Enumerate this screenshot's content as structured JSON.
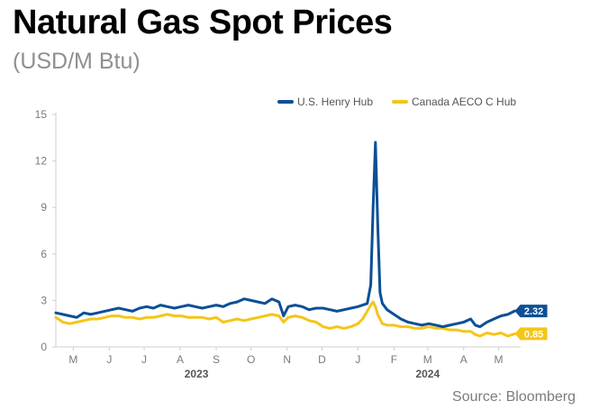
{
  "header": {
    "title": "Natural Gas Spot Prices",
    "subtitle": "(USD/M Btu)"
  },
  "footer": {
    "source": "Source: Bloomberg"
  },
  "colors": {
    "henry_hub": "#0b4f96",
    "aeco": "#f5c518",
    "axis": "#cfcfcf",
    "tick_text": "#7a7a7a"
  },
  "chart_data": {
    "type": "line",
    "title": "Natural Gas Spot Prices",
    "subtitle": "(USD/M Btu)",
    "xlabel": "",
    "ylabel": "",
    "ylim": [
      0,
      15
    ],
    "yticks": [
      0,
      3,
      6,
      9,
      12,
      15
    ],
    "xlim": [
      "2023-04-16",
      "2024-05-20"
    ],
    "grid": false,
    "legend_position": "top-right",
    "x_tick_labels": [
      {
        "label": "M",
        "date": "2023-05-01"
      },
      {
        "label": "J",
        "date": "2023-06-01"
      },
      {
        "label": "J",
        "date": "2023-07-01"
      },
      {
        "label": "A",
        "date": "2023-08-01"
      },
      {
        "label": "S",
        "date": "2023-09-01"
      },
      {
        "label": "O",
        "date": "2023-10-01"
      },
      {
        "label": "N",
        "date": "2023-11-01"
      },
      {
        "label": "D",
        "date": "2023-12-01"
      },
      {
        "label": "J",
        "date": "2024-01-01"
      },
      {
        "label": "F",
        "date": "2024-02-01"
      },
      {
        "label": "M",
        "date": "2024-03-01"
      },
      {
        "label": "A",
        "date": "2024-04-01"
      },
      {
        "label": "M",
        "date": "2024-05-01"
      }
    ],
    "year_labels": [
      {
        "label": "2023",
        "date": "2023-08-15"
      },
      {
        "label": "2024",
        "date": "2024-03-01"
      }
    ],
    "series": [
      {
        "name": "U.S. Henry Hub",
        "color": "#0b4f96",
        "end_label": "2.32",
        "points": [
          [
            "2023-04-16",
            2.2
          ],
          [
            "2023-04-22",
            2.1
          ],
          [
            "2023-04-28",
            2.0
          ],
          [
            "2023-05-04",
            1.9
          ],
          [
            "2023-05-10",
            2.2
          ],
          [
            "2023-05-16",
            2.1
          ],
          [
            "2023-05-22",
            2.2
          ],
          [
            "2023-05-28",
            2.3
          ],
          [
            "2023-06-03",
            2.4
          ],
          [
            "2023-06-09",
            2.5
          ],
          [
            "2023-06-15",
            2.4
          ],
          [
            "2023-06-21",
            2.3
          ],
          [
            "2023-06-27",
            2.5
          ],
          [
            "2023-07-03",
            2.6
          ],
          [
            "2023-07-09",
            2.5
          ],
          [
            "2023-07-15",
            2.7
          ],
          [
            "2023-07-21",
            2.6
          ],
          [
            "2023-07-27",
            2.5
          ],
          [
            "2023-08-02",
            2.6
          ],
          [
            "2023-08-08",
            2.7
          ],
          [
            "2023-08-14",
            2.6
          ],
          [
            "2023-08-20",
            2.5
          ],
          [
            "2023-08-26",
            2.6
          ],
          [
            "2023-09-01",
            2.7
          ],
          [
            "2023-09-07",
            2.6
          ],
          [
            "2023-09-13",
            2.8
          ],
          [
            "2023-09-19",
            2.9
          ],
          [
            "2023-09-25",
            3.1
          ],
          [
            "2023-10-01",
            3.0
          ],
          [
            "2023-10-07",
            2.9
          ],
          [
            "2023-10-13",
            2.8
          ],
          [
            "2023-10-19",
            3.1
          ],
          [
            "2023-10-25",
            2.9
          ],
          [
            "2023-10-29",
            2.0
          ],
          [
            "2023-11-02",
            2.6
          ],
          [
            "2023-11-08",
            2.7
          ],
          [
            "2023-11-14",
            2.6
          ],
          [
            "2023-11-20",
            2.4
          ],
          [
            "2023-11-26",
            2.5
          ],
          [
            "2023-12-02",
            2.5
          ],
          [
            "2023-12-08",
            2.4
          ],
          [
            "2023-12-14",
            2.3
          ],
          [
            "2023-12-20",
            2.4
          ],
          [
            "2023-12-26",
            2.5
          ],
          [
            "2024-01-01",
            2.6
          ],
          [
            "2024-01-05",
            2.7
          ],
          [
            "2024-01-09",
            2.8
          ],
          [
            "2024-01-12",
            4.0
          ],
          [
            "2024-01-14",
            9.0
          ],
          [
            "2024-01-16",
            13.2
          ],
          [
            "2024-01-18",
            8.0
          ],
          [
            "2024-01-20",
            3.5
          ],
          [
            "2024-01-22",
            2.8
          ],
          [
            "2024-01-26",
            2.4
          ],
          [
            "2024-02-01",
            2.1
          ],
          [
            "2024-02-07",
            1.8
          ],
          [
            "2024-02-13",
            1.6
          ],
          [
            "2024-02-19",
            1.5
          ],
          [
            "2024-02-25",
            1.4
          ],
          [
            "2024-03-02",
            1.5
          ],
          [
            "2024-03-08",
            1.4
          ],
          [
            "2024-03-14",
            1.3
          ],
          [
            "2024-03-20",
            1.4
          ],
          [
            "2024-03-26",
            1.5
          ],
          [
            "2024-04-01",
            1.6
          ],
          [
            "2024-04-07",
            1.8
          ],
          [
            "2024-04-11",
            1.4
          ],
          [
            "2024-04-15",
            1.3
          ],
          [
            "2024-04-21",
            1.6
          ],
          [
            "2024-04-27",
            1.8
          ],
          [
            "2024-05-03",
            2.0
          ],
          [
            "2024-05-09",
            2.1
          ],
          [
            "2024-05-15",
            2.32
          ]
        ]
      },
      {
        "name": "Canada AECO C Hub",
        "color": "#f5c518",
        "end_label": "0.85",
        "points": [
          [
            "2023-04-16",
            1.9
          ],
          [
            "2023-04-22",
            1.6
          ],
          [
            "2023-04-28",
            1.5
          ],
          [
            "2023-05-04",
            1.6
          ],
          [
            "2023-05-10",
            1.7
          ],
          [
            "2023-05-16",
            1.8
          ],
          [
            "2023-05-22",
            1.8
          ],
          [
            "2023-05-28",
            1.9
          ],
          [
            "2023-06-03",
            2.0
          ],
          [
            "2023-06-09",
            2.0
          ],
          [
            "2023-06-15",
            1.9
          ],
          [
            "2023-06-21",
            1.9
          ],
          [
            "2023-06-27",
            1.8
          ],
          [
            "2023-07-03",
            1.9
          ],
          [
            "2023-07-09",
            1.9
          ],
          [
            "2023-07-15",
            2.0
          ],
          [
            "2023-07-21",
            2.1
          ],
          [
            "2023-07-27",
            2.0
          ],
          [
            "2023-08-02",
            2.0
          ],
          [
            "2023-08-08",
            1.9
          ],
          [
            "2023-08-14",
            1.9
          ],
          [
            "2023-08-20",
            1.9
          ],
          [
            "2023-08-26",
            1.8
          ],
          [
            "2023-09-01",
            1.9
          ],
          [
            "2023-09-07",
            1.6
          ],
          [
            "2023-09-13",
            1.7
          ],
          [
            "2023-09-19",
            1.8
          ],
          [
            "2023-09-25",
            1.7
          ],
          [
            "2023-10-01",
            1.8
          ],
          [
            "2023-10-07",
            1.9
          ],
          [
            "2023-10-13",
            2.0
          ],
          [
            "2023-10-19",
            2.1
          ],
          [
            "2023-10-25",
            2.0
          ],
          [
            "2023-10-29",
            1.6
          ],
          [
            "2023-11-02",
            1.9
          ],
          [
            "2023-11-08",
            2.0
          ],
          [
            "2023-11-14",
            1.9
          ],
          [
            "2023-11-20",
            1.7
          ],
          [
            "2023-11-26",
            1.6
          ],
          [
            "2023-12-02",
            1.3
          ],
          [
            "2023-12-08",
            1.2
          ],
          [
            "2023-12-14",
            1.3
          ],
          [
            "2023-12-20",
            1.2
          ],
          [
            "2023-12-26",
            1.3
          ],
          [
            "2024-01-01",
            1.5
          ],
          [
            "2024-01-05",
            1.8
          ],
          [
            "2024-01-09",
            2.3
          ],
          [
            "2024-01-12",
            2.7
          ],
          [
            "2024-01-14",
            2.9
          ],
          [
            "2024-01-16",
            2.6
          ],
          [
            "2024-01-18",
            2.1
          ],
          [
            "2024-01-20",
            1.8
          ],
          [
            "2024-01-22",
            1.5
          ],
          [
            "2024-01-26",
            1.4
          ],
          [
            "2024-02-01",
            1.4
          ],
          [
            "2024-02-07",
            1.3
          ],
          [
            "2024-02-13",
            1.3
          ],
          [
            "2024-02-19",
            1.2
          ],
          [
            "2024-02-25",
            1.2
          ],
          [
            "2024-03-02",
            1.3
          ],
          [
            "2024-03-08",
            1.2
          ],
          [
            "2024-03-14",
            1.2
          ],
          [
            "2024-03-20",
            1.1
          ],
          [
            "2024-03-26",
            1.1
          ],
          [
            "2024-04-01",
            1.0
          ],
          [
            "2024-04-07",
            1.0
          ],
          [
            "2024-04-11",
            0.8
          ],
          [
            "2024-04-15",
            0.7
          ],
          [
            "2024-04-21",
            0.9
          ],
          [
            "2024-04-27",
            0.8
          ],
          [
            "2024-05-03",
            0.9
          ],
          [
            "2024-05-09",
            0.7
          ],
          [
            "2024-05-15",
            0.85
          ]
        ]
      }
    ]
  }
}
